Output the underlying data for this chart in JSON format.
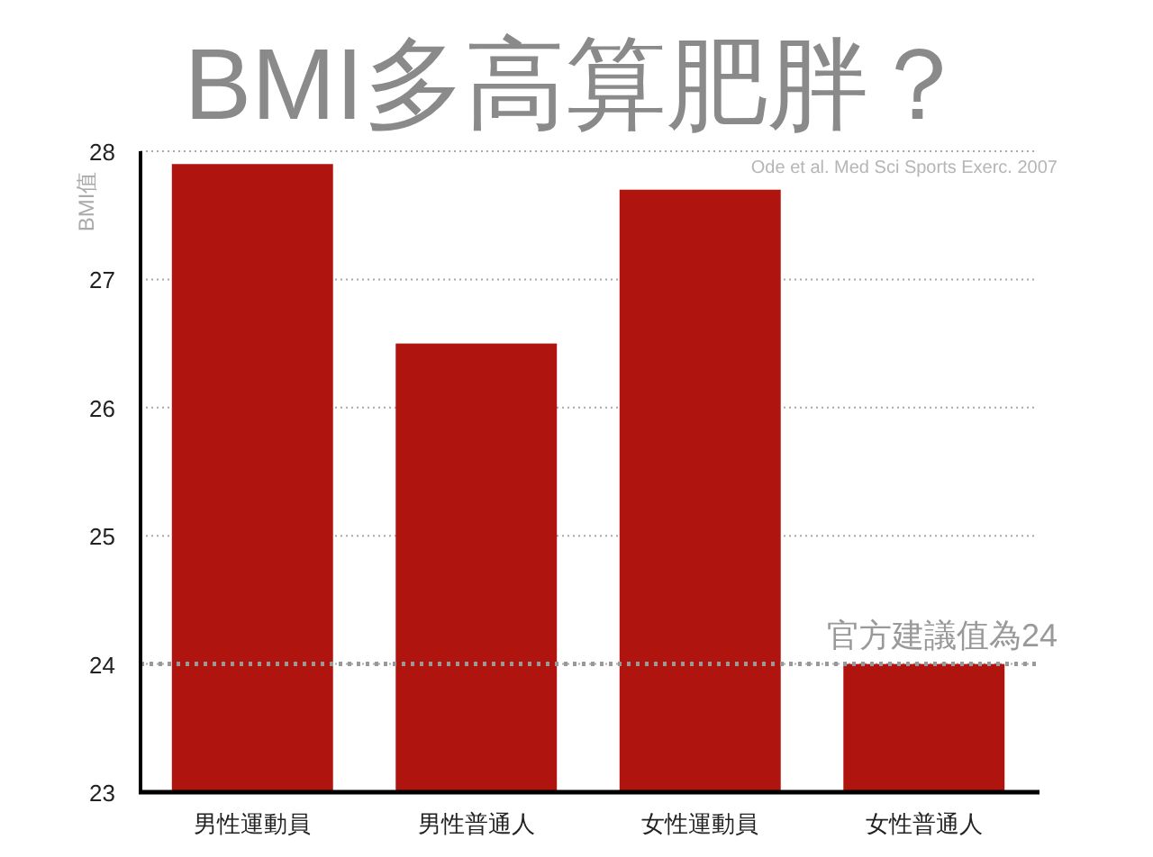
{
  "chart_data": {
    "type": "bar",
    "title": "BMI多高算肥胖？",
    "ylabel": "BMI值",
    "categories": [
      "男性運動員",
      "男性普通人",
      "女性運動員",
      "女性普通人"
    ],
    "values": [
      27.9,
      26.5,
      27.7,
      24.0
    ],
    "color": "#b0140e",
    "ylim": [
      23,
      28
    ],
    "yticks": [
      23,
      24,
      25,
      26,
      27,
      28
    ],
    "grid": "y",
    "ref_lines": [
      {
        "axis": "y",
        "value": 24,
        "label": "官方建議值為24",
        "color": "#999999",
        "line_style": "dotted"
      }
    ],
    "annotations": [
      "Ode et al. Med Sci Sports Exerc. 2007"
    ]
  }
}
